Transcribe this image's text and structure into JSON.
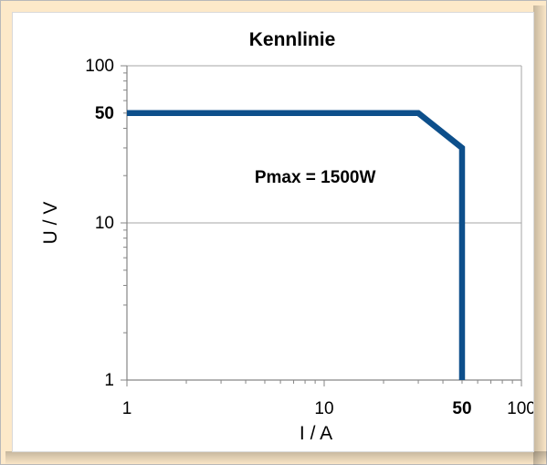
{
  "chart_data": {
    "type": "line",
    "title": "Kennlinie",
    "xlabel": "I / A",
    "ylabel": "U / V",
    "xscale": "log",
    "yscale": "log",
    "xlim": [
      1,
      100
    ],
    "ylim": [
      1,
      100
    ],
    "x_ticks": [
      {
        "value": 1,
        "label": "1",
        "bold": false
      },
      {
        "value": 10,
        "label": "10",
        "bold": false
      },
      {
        "value": 50,
        "label": "50",
        "bold": true
      },
      {
        "value": 100,
        "label": "100",
        "bold": false
      }
    ],
    "y_ticks": [
      {
        "value": 1,
        "label": "1",
        "bold": false
      },
      {
        "value": 10,
        "label": "10",
        "bold": false
      },
      {
        "value": 50,
        "label": "50",
        "bold": true
      },
      {
        "value": 100,
        "label": "100",
        "bold": false
      }
    ],
    "grid": {
      "x": false,
      "y": true,
      "y_values": [
        10,
        100
      ]
    },
    "series": [
      {
        "color": "#0d4f8b",
        "points": [
          {
            "x": 1,
            "y": 50
          },
          {
            "x": 30,
            "y": 50
          },
          {
            "x": 50,
            "y": 30
          },
          {
            "x": 50,
            "y": 1
          }
        ]
      }
    ],
    "annotations": [
      {
        "text": "Pmax = 1500W",
        "x": 9,
        "y": 18
      }
    ]
  },
  "colors": {
    "frame_background": "#fde9c9",
    "plot_background": "#ffffff",
    "series_line": "#0d4f8b",
    "grid": "#a6a6a6",
    "axis": "#868686"
  }
}
